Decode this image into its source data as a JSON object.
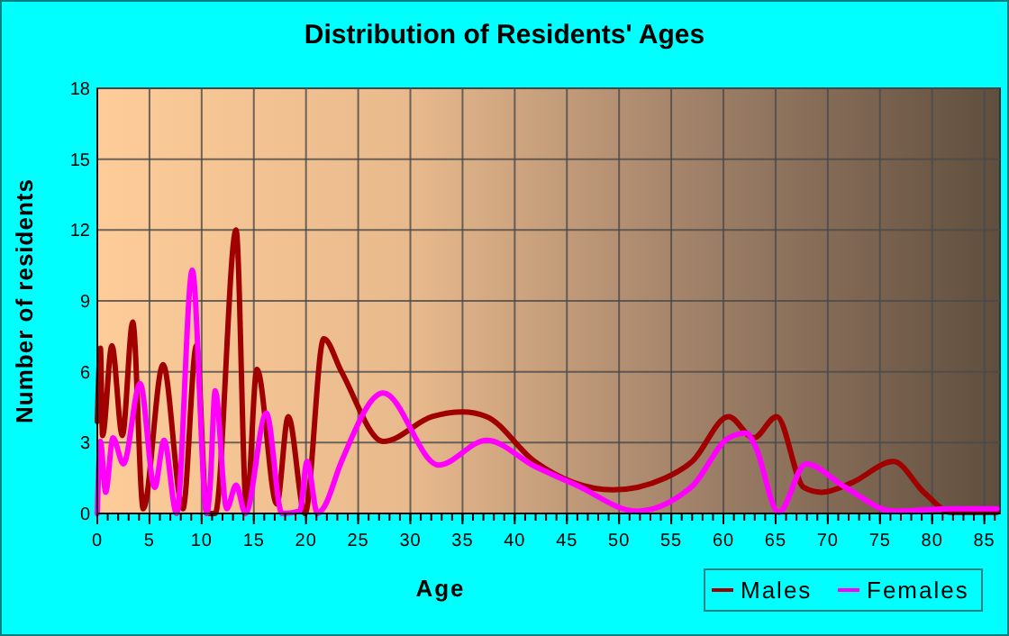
{
  "chart_data": {
    "type": "line",
    "title": "Distribution of Residents' Ages",
    "xlabel": "Age",
    "ylabel": "Number of residents",
    "xlim": [
      0,
      86.5
    ],
    "ylim": [
      0,
      18
    ],
    "xticks": [
      0,
      5,
      10,
      15,
      20,
      25,
      30,
      35,
      40,
      45,
      50,
      55,
      60,
      65,
      70,
      75,
      80,
      85
    ],
    "yticks": [
      0,
      3,
      6,
      9,
      12,
      15,
      18
    ],
    "grid": true,
    "legend": "bottom right",
    "series": [
      {
        "name": "Males",
        "color": "#a00000",
        "x": [
          0,
          0.3,
          0.5,
          1.4,
          2.4,
          3.4,
          4.4,
          6.3,
          8.2,
          9.5,
          10.5,
          11.3,
          13.3,
          14.3,
          15.3,
          17.2,
          18.3,
          19.9,
          21.7,
          23.4,
          27.4,
          32.1,
          35,
          37.3,
          41.9,
          49.4,
          54.4,
          57,
          60.5,
          62.9,
          65.1,
          67.7,
          69.4,
          72.3,
          76.3,
          79.2,
          81.8,
          86.2
        ],
        "values": [
          3.9,
          7,
          3.3,
          7.1,
          3.3,
          8.1,
          0.2,
          6.3,
          0.2,
          7.1,
          0,
          0,
          12,
          0.2,
          6.1,
          0.4,
          4.1,
          0,
          7.4,
          6,
          3.05,
          4.1,
          4.3,
          4.1,
          2.2,
          1,
          1.5,
          2.2,
          4.1,
          3.2,
          4.1,
          1.1,
          0.9,
          1.3,
          2.2,
          0.9,
          0.05,
          0.05
        ]
      },
      {
        "name": "Females",
        "color": "#ff00ff",
        "x": [
          0,
          0.3,
          0.8,
          1.5,
          2.5,
          4.1,
          5.5,
          6.4,
          7.6,
          9.1,
          10.5,
          10.8,
          11.3,
          12.4,
          13.3,
          14.2,
          16.2,
          17.7,
          19.4,
          20.1,
          21.1,
          21.7,
          23.4,
          27.4,
          32.7,
          37.3,
          41.9,
          45.9,
          51.7,
          56.3,
          57,
          60.5,
          62.2,
          63,
          65.3,
          67.9,
          71.7,
          76.3,
          82,
          86.2
        ],
        "values": [
          0,
          3.05,
          0.9,
          3.2,
          2.1,
          5.5,
          1.1,
          3.1,
          0,
          10.3,
          0,
          1.1,
          5.2,
          0.2,
          1.2,
          0,
          4.25,
          0,
          0.1,
          2.2,
          0,
          0.25,
          2.2,
          5.1,
          2.05,
          3.1,
          2,
          1.2,
          0.1,
          0.9,
          1.15,
          3.2,
          3.4,
          2.9,
          0.05,
          2.1,
          1.1,
          0.1,
          0.2,
          0.2
        ]
      }
    ]
  }
}
